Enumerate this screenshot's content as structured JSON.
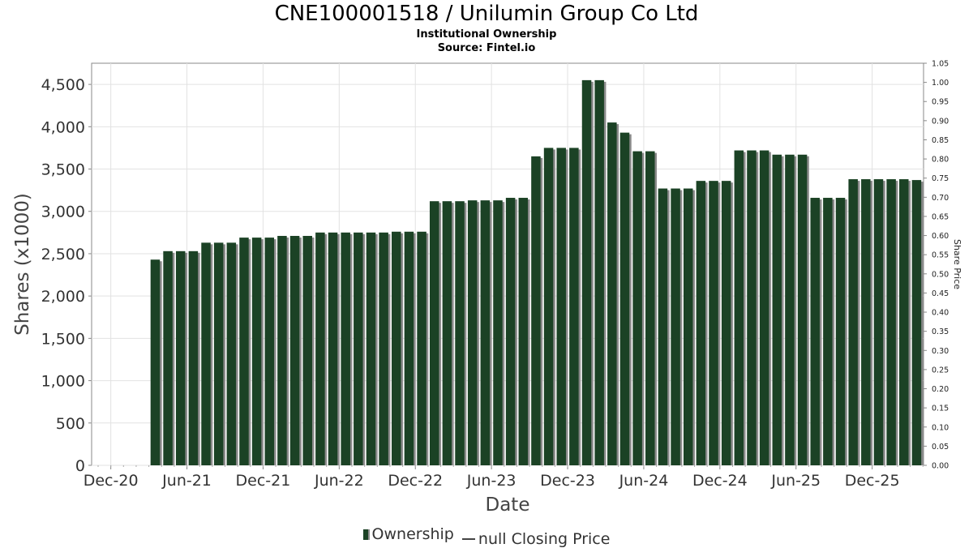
{
  "title": "CNE100001518 / Unilumin Group Co Ltd",
  "subtitle": "Institutional Ownership",
  "source": "Source: Fintel.io",
  "legend": {
    "ownership_label": "Ownership",
    "price_label": "null Closing Price"
  },
  "colors": {
    "bar": "#1b4225",
    "bar_shadow": "#8a8a8a",
    "grid": "#e2e2e2",
    "frame": "#888888"
  },
  "chart_data": {
    "type": "bar",
    "title": "CNE100001518 / Unilumin Group Co Ltd",
    "xlabel": "Date",
    "ylabel": "Shares (x1000)",
    "y2label": "Share Price",
    "ylim": [
      0,
      4750
    ],
    "y2lim": [
      0,
      1.05
    ],
    "grid": true,
    "legend_position": "bottom",
    "y_ticks": [
      0,
      500,
      1000,
      1500,
      2000,
      2500,
      3000,
      3500,
      4000,
      4500
    ],
    "y_tick_labels": [
      "0",
      "500",
      "1,000",
      "1,500",
      "2,000",
      "2,500",
      "3,000",
      "3,500",
      "4,000",
      "4,500"
    ],
    "y2_ticks": [
      0,
      0.05,
      0.1,
      0.15,
      0.2,
      0.25,
      0.3,
      0.35,
      0.4,
      0.45,
      0.5,
      0.55,
      0.6,
      0.65,
      0.7,
      0.75,
      0.8,
      0.85,
      0.9,
      0.95,
      1.0,
      1.05
    ],
    "y2_tick_labels": [
      "0.00",
      "0.05",
      "0.10",
      "0.15",
      "0.20",
      "0.25",
      "0.30",
      "0.35",
      "0.40",
      "0.45",
      "0.50",
      "0.55",
      "0.60",
      "0.65",
      "0.70",
      "0.75",
      "0.80",
      "0.85",
      "0.90",
      "0.95",
      "1.00",
      "1.05"
    ],
    "x_tick_labels": [
      "Dec-20",
      "Jun-21",
      "Dec-21",
      "Jun-22",
      "Dec-22",
      "Jun-23",
      "Dec-23",
      "Jun-24",
      "Dec-24",
      "Jun-25",
      "Dec-25"
    ],
    "x_start": "2020-11",
    "series": [
      {
        "name": "Ownership",
        "x": [
          "2021-03",
          "2021-04",
          "2021-05",
          "2021-06",
          "2021-07",
          "2021-08",
          "2021-09",
          "2021-10",
          "2021-11",
          "2021-12",
          "2022-01",
          "2022-02",
          "2022-03",
          "2022-04",
          "2022-05",
          "2022-06",
          "2022-07",
          "2022-08",
          "2022-09",
          "2022-10",
          "2022-11",
          "2022-12",
          "2023-01",
          "2023-02",
          "2023-03",
          "2023-04",
          "2023-05",
          "2023-06",
          "2023-07",
          "2023-08",
          "2023-09",
          "2023-10",
          "2023-11",
          "2023-12",
          "2024-01",
          "2024-02",
          "2024-03",
          "2024-04",
          "2024-05",
          "2024-06",
          "2024-07",
          "2024-08",
          "2024-09",
          "2024-10",
          "2024-11",
          "2024-12",
          "2025-01",
          "2025-02",
          "2025-03",
          "2025-04",
          "2025-05",
          "2025-06",
          "2025-07",
          "2025-08",
          "2025-09",
          "2025-10",
          "2025-11",
          "2025-12",
          "2026-01",
          "2026-02",
          "2026-03"
        ],
        "values": [
          2430,
          2530,
          2530,
          2530,
          2630,
          2630,
          2630,
          2690,
          2690,
          2690,
          2710,
          2710,
          2710,
          2750,
          2750,
          2750,
          2750,
          2750,
          2750,
          2760,
          2760,
          2760,
          3120,
          3120,
          3120,
          3130,
          3130,
          3130,
          3160,
          3160,
          3650,
          3750,
          3750,
          3750,
          4550,
          4550,
          4050,
          3930,
          3710,
          3710,
          3270,
          3270,
          3270,
          3360,
          3360,
          3360,
          3720,
          3720,
          3720,
          3670,
          3670,
          3670,
          3160,
          3160,
          3160,
          3380,
          3380,
          3380,
          3380,
          3380,
          3370
        ]
      },
      {
        "name": "null Closing Price",
        "x": [],
        "values": []
      }
    ]
  }
}
